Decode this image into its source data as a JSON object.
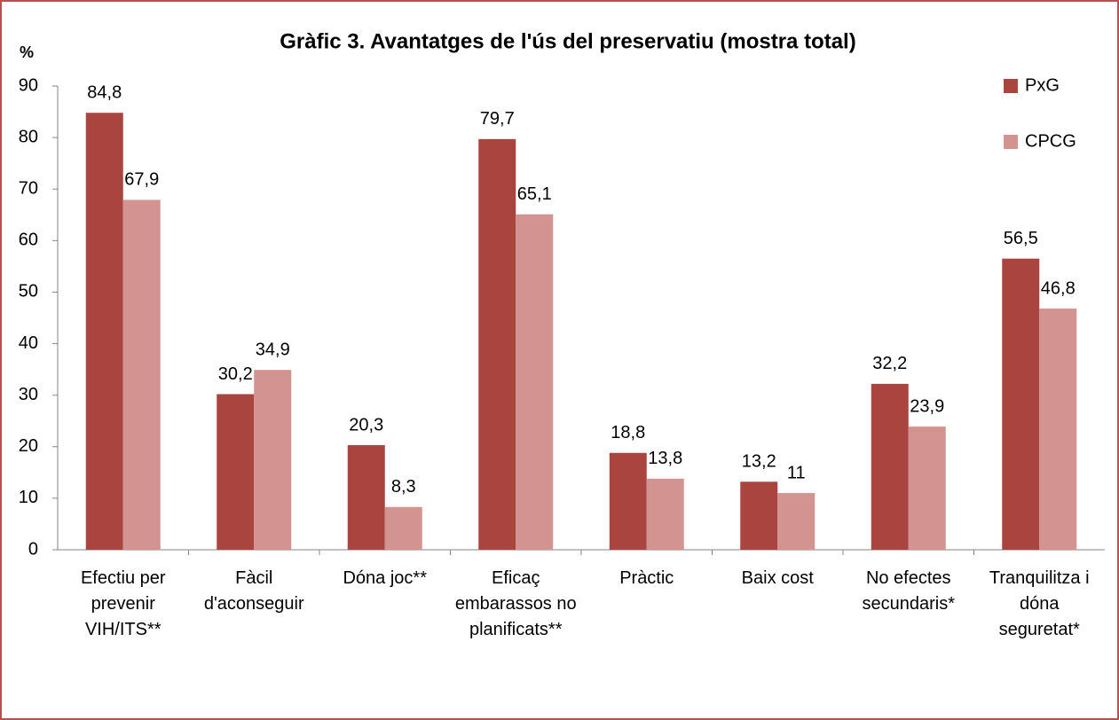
{
  "chart_data": {
    "type": "bar",
    "title": "Gràfic 3.  Avantatges de l'ús del preservatiu (mostra total)",
    "y_label": "%",
    "categories": [
      "Efectiu per prevenir VIH/ITS**",
      "Fàcil d'aconseguir",
      "Dóna joc**",
      "Eficaç embarassos no planificats**",
      "Pràctic",
      "Baix cost",
      "No efectes secundaris*",
      "Tranquilitza i dóna seguretat*"
    ],
    "series": [
      {
        "name": "PxG",
        "color": "#a9443f",
        "values": [
          84.8,
          30.2,
          20.3,
          79.7,
          18.8,
          13.2,
          32.2,
          56.5
        ],
        "value_labels": [
          "84,8",
          "30,2",
          "20,3",
          "79,7",
          "18,8",
          "13,2",
          "32,2",
          "56,5"
        ]
      },
      {
        "name": "CPCG",
        "color": "#d39390",
        "values": [
          67.9,
          34.9,
          8.3,
          65.1,
          13.8,
          11,
          23.9,
          46.8
        ],
        "value_labels": [
          "67,9",
          "34,9",
          "8,3",
          "65,1",
          "13,8",
          "11",
          "23,9",
          "46,8"
        ]
      }
    ],
    "ylim": [
      0,
      90
    ],
    "yticks": [
      0,
      10,
      20,
      30,
      40,
      50,
      60,
      70,
      80,
      90
    ],
    "grid": false,
    "legend": "top-right"
  }
}
